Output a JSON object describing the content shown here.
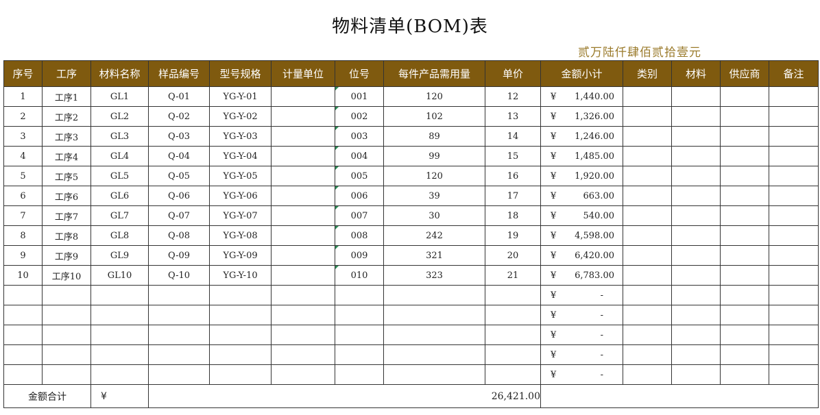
{
  "title": "物料清单(BOM)表",
  "amount_in_words": "贰万陆仟肆佰贰拾壹元",
  "colors": {
    "header_bg": "#7f5a0f",
    "header_text": "#ffffff",
    "words_color": "#9a7a2a"
  },
  "headers": [
    "序号",
    "工序",
    "材料名称",
    "样品编号",
    "型号规格",
    "计量单位",
    "位号",
    "每件产品需用量",
    "单价",
    "金额小计",
    "类别",
    "材料",
    "供应商",
    "备注"
  ],
  "currency_symbol": "¥",
  "rows": [
    {
      "seq": "1",
      "process": "工序1",
      "material": "GL1",
      "sample": "Q-01",
      "model": "YG-Y-01",
      "unit": "",
      "pos": "001",
      "qty": "120",
      "price": "12",
      "subtotal": "1,440.00"
    },
    {
      "seq": "2",
      "process": "工序2",
      "material": "GL2",
      "sample": "Q-02",
      "model": "YG-Y-02",
      "unit": "",
      "pos": "002",
      "qty": "102",
      "price": "13",
      "subtotal": "1,326.00"
    },
    {
      "seq": "3",
      "process": "工序3",
      "material": "GL3",
      "sample": "Q-03",
      "model": "YG-Y-03",
      "unit": "",
      "pos": "003",
      "qty": "89",
      "price": "14",
      "subtotal": "1,246.00"
    },
    {
      "seq": "4",
      "process": "工序4",
      "material": "GL4",
      "sample": "Q-04",
      "model": "YG-Y-04",
      "unit": "",
      "pos": "004",
      "qty": "99",
      "price": "15",
      "subtotal": "1,485.00"
    },
    {
      "seq": "5",
      "process": "工序5",
      "material": "GL5",
      "sample": "Q-05",
      "model": "YG-Y-05",
      "unit": "",
      "pos": "005",
      "qty": "120",
      "price": "16",
      "subtotal": "1,920.00"
    },
    {
      "seq": "6",
      "process": "工序6",
      "material": "GL6",
      "sample": "Q-06",
      "model": "YG-Y-06",
      "unit": "",
      "pos": "006",
      "qty": "39",
      "price": "17",
      "subtotal": "663.00"
    },
    {
      "seq": "7",
      "process": "工序7",
      "material": "GL7",
      "sample": "Q-07",
      "model": "YG-Y-07",
      "unit": "",
      "pos": "007",
      "qty": "30",
      "price": "18",
      "subtotal": "540.00"
    },
    {
      "seq": "8",
      "process": "工序8",
      "material": "GL8",
      "sample": "Q-08",
      "model": "YG-Y-08",
      "unit": "",
      "pos": "008",
      "qty": "242",
      "price": "19",
      "subtotal": "4,598.00"
    },
    {
      "seq": "9",
      "process": "工序9",
      "material": "GL9",
      "sample": "Q-09",
      "model": "YG-Y-09",
      "unit": "",
      "pos": "009",
      "qty": "321",
      "price": "20",
      "subtotal": "6,420.00"
    },
    {
      "seq": "10",
      "process": "工序10",
      "material": "GL10",
      "sample": "Q-10",
      "model": "YG-Y-10",
      "unit": "",
      "pos": "010",
      "qty": "323",
      "price": "21",
      "subtotal": "6,783.00"
    },
    {
      "seq": "",
      "process": "",
      "material": "",
      "sample": "",
      "model": "",
      "unit": "",
      "pos": "",
      "qty": "",
      "price": "",
      "subtotal": "-"
    },
    {
      "seq": "",
      "process": "",
      "material": "",
      "sample": "",
      "model": "",
      "unit": "",
      "pos": "",
      "qty": "",
      "price": "",
      "subtotal": "-"
    },
    {
      "seq": "",
      "process": "",
      "material": "",
      "sample": "",
      "model": "",
      "unit": "",
      "pos": "",
      "qty": "",
      "price": "",
      "subtotal": "-"
    },
    {
      "seq": "",
      "process": "",
      "material": "",
      "sample": "",
      "model": "",
      "unit": "",
      "pos": "",
      "qty": "",
      "price": "",
      "subtotal": "-"
    },
    {
      "seq": "",
      "process": "",
      "material": "",
      "sample": "",
      "model": "",
      "unit": "",
      "pos": "",
      "qty": "",
      "price": "",
      "subtotal": "-"
    }
  ],
  "footer": {
    "label": "金额合计",
    "currency": "¥",
    "total": "26,421.00"
  }
}
